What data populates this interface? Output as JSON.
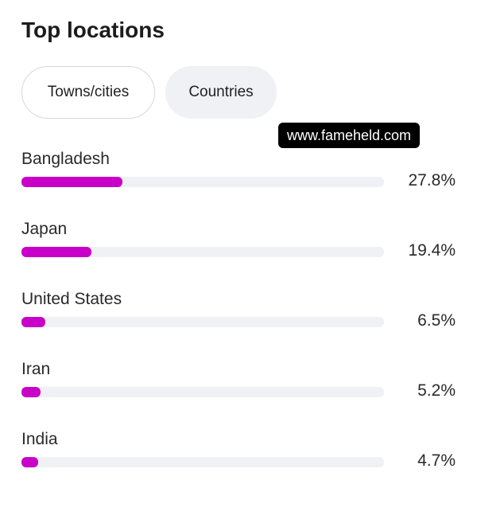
{
  "title": "Top locations",
  "tabs": [
    {
      "label": "Towns/cities",
      "selected": false
    },
    {
      "label": "Countries",
      "selected": true
    }
  ],
  "watermark": "www.fameheld.com",
  "bar_color": "#c800c8",
  "locations": [
    {
      "name": "Bangladesh",
      "percent_label": "27.8%",
      "value": 27.8
    },
    {
      "name": "Japan",
      "percent_label": "19.4%",
      "value": 19.4
    },
    {
      "name": "United States",
      "percent_label": "6.5%",
      "value": 6.5
    },
    {
      "name": "Iran",
      "percent_label": "5.2%",
      "value": 5.2
    },
    {
      "name": "India",
      "percent_label": "4.7%",
      "value": 4.7
    }
  ]
}
